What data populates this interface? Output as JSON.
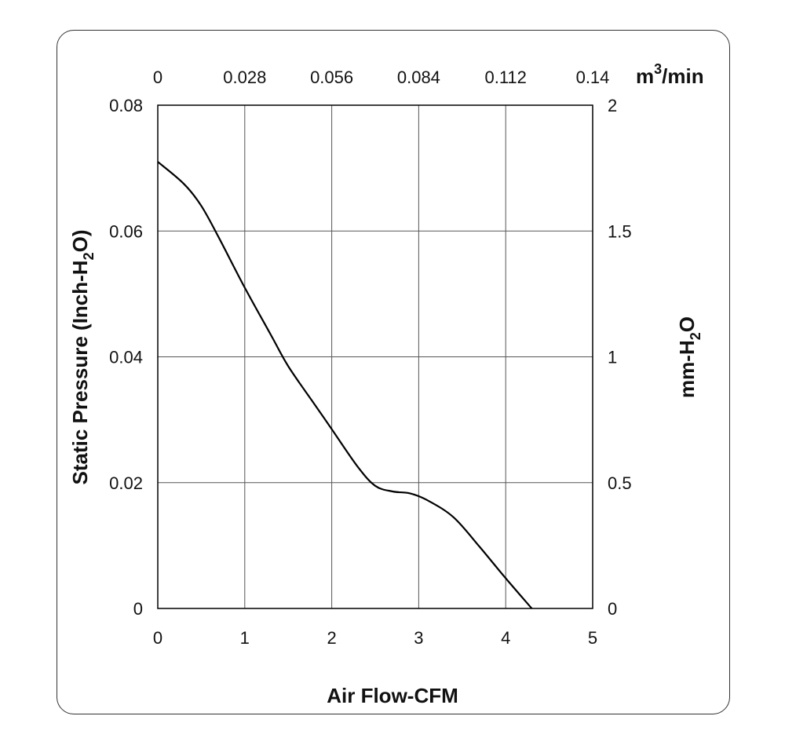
{
  "chart_data": {
    "type": "line",
    "title": "",
    "xlabel": "Air Flow-CFM",
    "ylabel": {
      "pre": "Static Pressure (Inch-H",
      "sub": "2",
      "post": "O)"
    },
    "x2label": {
      "pre": "m",
      "sup": "3",
      "post": "/min"
    },
    "y2label": {
      "pre": "mm-H",
      "sub": "2",
      "post": "O"
    },
    "xlim": [
      0,
      5
    ],
    "ylim": [
      0,
      0.08
    ],
    "x2lim": [
      0,
      0.14
    ],
    "y2lim": [
      0,
      2
    ],
    "x_ticks": [
      "0",
      "1",
      "2",
      "3",
      "4",
      "5"
    ],
    "y_ticks": [
      "0",
      "0.02",
      "0.04",
      "0.06",
      "0.08"
    ],
    "x2_ticks": [
      "0",
      "0.028",
      "0.056",
      "0.084",
      "0.112",
      "0.14"
    ],
    "y2_ticks": [
      "0",
      "0.5",
      "1",
      "1.5",
      "2"
    ],
    "grid": true,
    "line_color": "#000000",
    "series": [
      {
        "x": [
          0,
          0.3,
          0.5,
          0.7,
          1.0,
          1.3,
          1.5,
          1.8,
          2.0,
          2.3,
          2.5,
          2.7,
          2.9,
          3.1,
          3.4,
          3.7,
          4.0,
          4.3
        ],
        "y": [
          0.071,
          0.0675,
          0.064,
          0.059,
          0.051,
          0.0435,
          0.0385,
          0.0325,
          0.0285,
          0.0225,
          0.0195,
          0.0186,
          0.0183,
          0.0172,
          0.0145,
          0.0098,
          0.0048,
          0.0
        ]
      }
    ]
  }
}
